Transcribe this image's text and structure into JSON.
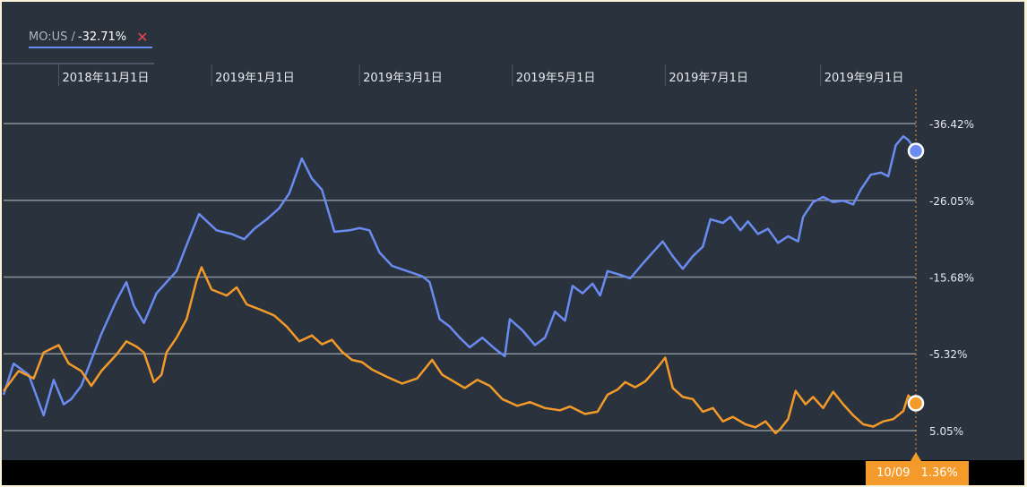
{
  "legend": {
    "ticker": "MO:US /",
    "value": "-32.71%",
    "close_symbol": "✕"
  },
  "badge": {
    "date": "10/09",
    "value": "1.36%"
  },
  "colors": {
    "background": "#29323d",
    "gridline": "#8a929c",
    "series_mo": "#6a8cf0",
    "series_compare": "#f39a2a"
  },
  "chart_data": {
    "type": "line",
    "x_tick_labels": [
      "2018年11月1日",
      "2019年1月1日",
      "2019年3月1日",
      "2019年5月1日",
      "2019年7月1日",
      "2019年9月1日"
    ],
    "x_tick_dates": [
      "2018-11-01",
      "2019-01-01",
      "2019-03-01",
      "2019-05-01",
      "2019-07-01",
      "2019-09-01"
    ],
    "xlim": [
      "2018-10-10",
      "2019-10-09"
    ],
    "y_ticks": [
      5.05,
      -5.32,
      -15.68,
      -26.05,
      -36.42
    ],
    "y_tick_labels": [
      "5.05%",
      "-5.32%",
      "-15.68%",
      "-26.05%",
      "-36.42%"
    ],
    "ylim": [
      -36.42,
      5.05
    ],
    "grid": true,
    "series": [
      {
        "name": "MO:US",
        "color": "#6a8cf0",
        "points": [
          [
            "2018-10-10",
            0.2
          ],
          [
            "2018-10-14",
            -4.0
          ],
          [
            "2018-10-20",
            -2.5
          ],
          [
            "2018-10-26",
            3.0
          ],
          [
            "2018-10-30",
            -1.8
          ],
          [
            "2018-11-03",
            1.5
          ],
          [
            "2018-11-06",
            0.8
          ],
          [
            "2018-11-10",
            -1.0
          ],
          [
            "2018-11-18",
            -8.0
          ],
          [
            "2018-11-24",
            -12.5
          ],
          [
            "2018-11-28",
            -15.0
          ],
          [
            "2018-12-01",
            -11.8
          ],
          [
            "2018-12-05",
            -9.5
          ],
          [
            "2018-12-10",
            -13.5
          ],
          [
            "2018-12-14",
            -15.0
          ],
          [
            "2018-12-18",
            -16.5
          ],
          [
            "2018-12-22",
            -20.0
          ],
          [
            "2018-12-27",
            -24.2
          ],
          [
            "2019-01-03",
            -22.0
          ],
          [
            "2019-01-09",
            -21.5
          ],
          [
            "2019-01-14",
            -20.8
          ],
          [
            "2019-01-18",
            -22.2
          ],
          [
            "2019-01-23",
            -23.5
          ],
          [
            "2019-01-28",
            -25.0
          ],
          [
            "2019-02-01",
            -27.0
          ],
          [
            "2019-02-06",
            -31.7
          ],
          [
            "2019-02-10",
            -29.0
          ],
          [
            "2019-02-14",
            -27.5
          ],
          [
            "2019-02-19",
            -21.8
          ],
          [
            "2019-02-25",
            -22.0
          ],
          [
            "2019-03-01",
            -22.3
          ],
          [
            "2019-03-05",
            -22.0
          ],
          [
            "2019-03-09",
            -19.0
          ],
          [
            "2019-03-14",
            -17.2
          ],
          [
            "2019-03-20",
            -16.5
          ],
          [
            "2019-03-26",
            -15.8
          ],
          [
            "2019-03-29",
            -15.0
          ],
          [
            "2019-04-02",
            -10.0
          ],
          [
            "2019-04-06",
            -9.0
          ],
          [
            "2019-04-10",
            -7.5
          ],
          [
            "2019-04-14",
            -6.2
          ],
          [
            "2019-04-19",
            -7.5
          ],
          [
            "2019-04-24",
            -6.0
          ],
          [
            "2019-04-28",
            -5.0
          ],
          [
            "2019-04-30",
            -10.0
          ],
          [
            "2019-05-05",
            -8.5
          ],
          [
            "2019-05-10",
            -6.5
          ],
          [
            "2019-05-14",
            -7.5
          ],
          [
            "2019-05-18",
            -11.0
          ],
          [
            "2019-05-22",
            -9.8
          ],
          [
            "2019-05-25",
            -14.5
          ],
          [
            "2019-05-29",
            -13.5
          ],
          [
            "2019-06-02",
            -14.8
          ],
          [
            "2019-06-05",
            -13.2
          ],
          [
            "2019-06-08",
            -16.5
          ],
          [
            "2019-06-13",
            -16.0
          ],
          [
            "2019-06-17",
            -15.5
          ],
          [
            "2019-06-22",
            -17.5
          ],
          [
            "2019-06-26",
            -19.0
          ],
          [
            "2019-06-30",
            -20.5
          ],
          [
            "2019-07-04",
            -18.5
          ],
          [
            "2019-07-08",
            -16.8
          ],
          [
            "2019-07-12",
            -18.5
          ],
          [
            "2019-07-16",
            -19.8
          ],
          [
            "2019-07-19",
            -23.5
          ],
          [
            "2019-07-24",
            -23.0
          ],
          [
            "2019-07-27",
            -23.8
          ],
          [
            "2019-07-31",
            -22.0
          ],
          [
            "2019-08-03",
            -23.2
          ],
          [
            "2019-08-07",
            -21.5
          ],
          [
            "2019-08-11",
            -22.2
          ],
          [
            "2019-08-15",
            -20.3
          ],
          [
            "2019-08-19",
            -21.2
          ],
          [
            "2019-08-23",
            -20.5
          ],
          [
            "2019-08-25",
            -23.8
          ],
          [
            "2019-08-29",
            -25.8
          ],
          [
            "2019-09-02",
            -26.5
          ],
          [
            "2019-09-06",
            -25.8
          ],
          [
            "2019-09-10",
            -26.0
          ],
          [
            "2019-09-14",
            -25.5
          ],
          [
            "2019-09-17",
            -27.5
          ],
          [
            "2019-09-21",
            -29.5
          ],
          [
            "2019-09-25",
            -29.8
          ],
          [
            "2019-09-28",
            -29.3
          ],
          [
            "2019-10-01",
            -33.5
          ],
          [
            "2019-10-04",
            -34.7
          ],
          [
            "2019-10-06",
            -34.2
          ],
          [
            "2019-10-09",
            -32.71
          ]
        ]
      },
      {
        "name": "",
        "color": "#f39a2a",
        "points": [
          [
            "2018-10-10",
            -0.3
          ],
          [
            "2018-10-16",
            -3.0
          ],
          [
            "2018-10-22",
            -2.0
          ],
          [
            "2018-10-26",
            -5.5
          ],
          [
            "2018-11-01",
            -6.5
          ],
          [
            "2018-11-05",
            -4.0
          ],
          [
            "2018-11-10",
            -3.0
          ],
          [
            "2018-11-14",
            -1.0
          ],
          [
            "2018-11-18",
            -3.0
          ],
          [
            "2018-11-24",
            -5.2
          ],
          [
            "2018-11-28",
            -7.0
          ],
          [
            "2018-12-02",
            -6.3
          ],
          [
            "2018-12-05",
            -5.5
          ],
          [
            "2018-12-09",
            -1.5
          ],
          [
            "2018-12-12",
            -2.5
          ],
          [
            "2018-12-14",
            -5.5
          ],
          [
            "2018-12-18",
            -7.5
          ],
          [
            "2018-12-22",
            -10.0
          ],
          [
            "2018-12-26",
            -15.2
          ],
          [
            "2018-12-28",
            -17.0
          ],
          [
            "2019-01-01",
            -14.0
          ],
          [
            "2019-01-07",
            -13.2
          ],
          [
            "2019-01-11",
            -14.3
          ],
          [
            "2019-01-15",
            -12.0
          ],
          [
            "2019-01-21",
            -11.2
          ],
          [
            "2019-01-26",
            -10.5
          ],
          [
            "2019-01-31",
            -9.0
          ],
          [
            "2019-02-05",
            -7.0
          ],
          [
            "2019-02-10",
            -7.8
          ],
          [
            "2019-02-14",
            -6.6
          ],
          [
            "2019-02-18",
            -7.2
          ],
          [
            "2019-02-22",
            -5.6
          ],
          [
            "2019-02-26",
            -4.5
          ],
          [
            "2019-03-02",
            -4.2
          ],
          [
            "2019-03-06",
            -3.2
          ],
          [
            "2019-03-12",
            -2.2
          ],
          [
            "2019-03-18",
            -1.3
          ],
          [
            "2019-03-24",
            -2.0
          ],
          [
            "2019-03-30",
            -4.5
          ],
          [
            "2019-04-03",
            -2.5
          ],
          [
            "2019-04-08",
            -1.5
          ],
          [
            "2019-04-12",
            -0.7
          ],
          [
            "2019-04-17",
            -1.8
          ],
          [
            "2019-04-22",
            -1.0
          ],
          [
            "2019-04-27",
            0.8
          ],
          [
            "2019-05-03",
            1.7
          ],
          [
            "2019-05-08",
            1.2
          ],
          [
            "2019-05-14",
            2.0
          ],
          [
            "2019-05-20",
            2.3
          ],
          [
            "2019-05-24",
            1.8
          ],
          [
            "2019-05-30",
            2.8
          ],
          [
            "2019-06-04",
            2.5
          ],
          [
            "2019-06-08",
            0.2
          ],
          [
            "2019-06-12",
            -0.5
          ],
          [
            "2019-06-15",
            -1.5
          ],
          [
            "2019-06-19",
            -0.8
          ],
          [
            "2019-06-23",
            -1.6
          ],
          [
            "2019-06-28",
            -3.5
          ],
          [
            "2019-07-01",
            -4.8
          ],
          [
            "2019-07-04",
            -0.7
          ],
          [
            "2019-07-08",
            0.5
          ],
          [
            "2019-07-12",
            0.8
          ],
          [
            "2019-07-16",
            2.5
          ],
          [
            "2019-07-20",
            2.0
          ],
          [
            "2019-07-24",
            3.8
          ],
          [
            "2019-07-28",
            3.2
          ],
          [
            "2019-08-02",
            4.2
          ],
          [
            "2019-08-06",
            4.6
          ],
          [
            "2019-08-10",
            3.8
          ],
          [
            "2019-08-14",
            5.4
          ],
          [
            "2019-08-16",
            4.8
          ],
          [
            "2019-08-19",
            3.5
          ],
          [
            "2019-08-22",
            -0.3
          ],
          [
            "2019-08-26",
            1.5
          ],
          [
            "2019-08-29",
            0.5
          ],
          [
            "2019-09-02",
            2.0
          ],
          [
            "2019-09-06",
            -0.2
          ],
          [
            "2019-09-10",
            1.5
          ],
          [
            "2019-09-14",
            3.0
          ],
          [
            "2019-09-18",
            4.2
          ],
          [
            "2019-09-22",
            4.5
          ],
          [
            "2019-09-26",
            3.8
          ],
          [
            "2019-09-30",
            3.5
          ],
          [
            "2019-10-04",
            2.4
          ],
          [
            "2019-10-06",
            0.3
          ],
          [
            "2019-10-09",
            1.36
          ]
        ]
      }
    ]
  }
}
